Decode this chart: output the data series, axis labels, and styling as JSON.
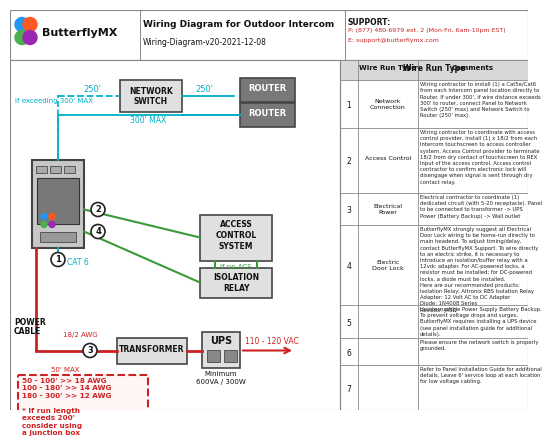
{
  "title": "Wiring Diagram for Outdoor Intercom",
  "subtitle": "Wiring-Diagram-v20-2021-12-08",
  "support_label": "SUPPORT:",
  "support_phone": "P: (877) 480-6979 ext. 2 (Mon-Fri, 6am-10pm EST)",
  "support_email": "E: support@butterflymx.com",
  "bg_color": "#ffffff",
  "cyan": "#00b0c8",
  "green": "#3a9a3a",
  "red": "#cc2222",
  "rows": [
    {
      "num": "1",
      "type": "Network\nConnection",
      "comment": "Wiring contractor to install (1) a Cat5e/Cat6\nfrom each Intercom panel location directly to\nRouter. If under 300', if wire distance exceeds\n300' to router, connect Panel to Network\nSwitch (250' max) and Network Switch to\nRouter (250' max)."
    },
    {
      "num": "2",
      "type": "Access Control",
      "comment": "Wiring contractor to coordinate with access\ncontrol provider, install (1) x 18/2 from each\nIntercom touchscreen to access controller\nsystem. Access Control provider to terminate\n18/2 from dry contact of touchscreen to REX\nInput of the access control. Access control\ncontractor to confirm electronic lock will\ndisengage when signal is sent through dry\ncontact relay."
    },
    {
      "num": "3",
      "type": "Electrical\nPower",
      "comment": "Electrical contractor to coordinate (1)\ndedicated circuit (with 5-20 receptacle). Panel\nto be connected to transformer -> UPS\nPower (Battery Backup) -> Wall outlet"
    },
    {
      "num": "4",
      "type": "Electric\nDoor Lock",
      "comment": "ButterflyMX strongly suggest all Electrical\nDoor Lock wiring to be home-run directly to\nmain headend. To adjust timing/delay,\ncontact ButterflyMX Support. To wire directly\nto an electric strike, it is necessary to\nintroduce an isolation/buffer relay with a\n12vdc adapter. For AC-powered locks, a\nresistor must be installed; for DC-powered\nlocks, a diode must be installed.\nHere are our recommended products:\nIsolation Relay: Altronix RBS Isolation Relay\nAdapter: 12 Volt AC to DC Adapter\nDiode: 1N4008 Series\nResistor: J45Ω"
    },
    {
      "num": "5",
      "type": "",
      "comment": "Uninterruptible Power Supply Battery Backup.\nTo prevent voltage drops and surges,\nButterflyMX requires installing a UPS device\n(see panel installation guide for additional\ndetails)."
    },
    {
      "num": "6",
      "type": "",
      "comment": "Please ensure the network switch is properly\ngrounded."
    },
    {
      "num": "7",
      "type": "",
      "comment": "Refer to Panel Installation Guide for additional\ndetails. Leave 6' service loop at each location\nfor low voltage cabling."
    }
  ]
}
